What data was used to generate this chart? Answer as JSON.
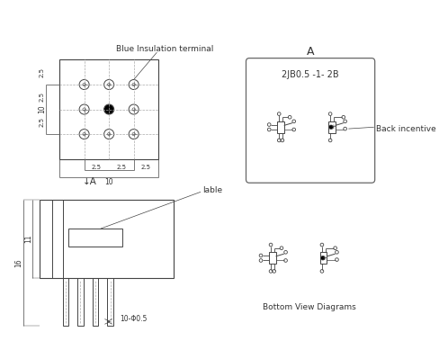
{
  "bg_color": "#ffffff",
  "line_color": "#444444",
  "title": "Blue Insulation terminal",
  "label_back_incentive": "Back incentive",
  "label_lable": "lable",
  "label_bottom_view": "Bottom View Diagrams",
  "label_A_top": "A",
  "label_A_side": "↓A",
  "model_text": "2JB0.5 -1- 2B",
  "dim_10_top": "10",
  "dim_10_bot": "10",
  "dim_25_1": "2.5",
  "dim_25_2": "2.5",
  "dim_25_3": "2.5",
  "dim_10_left": "10",
  "dim_11": "11",
  "dim_16": "16",
  "dim_10_phi": "10-Φ0.5"
}
